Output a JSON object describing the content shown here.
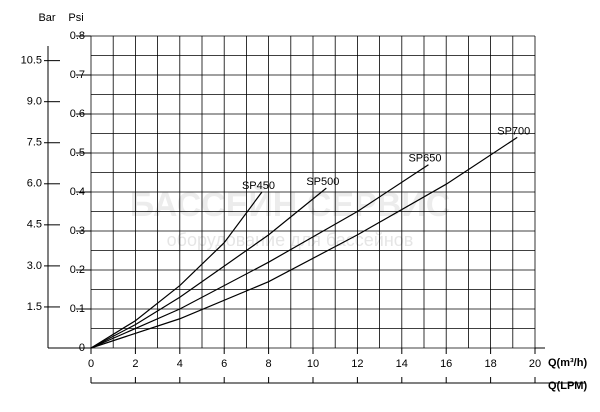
{
  "chart_data": {
    "type": "line",
    "y_header": "Psi",
    "y2_header": "Bar",
    "xlabel": "Q(m³/h)",
    "x2label": "Q(LPM)",
    "watermark": [
      "БАССЕЙН СЕРВИС",
      "оборудование для бассейнов"
    ],
    "xlim": [
      0,
      20
    ],
    "xticks": [
      0,
      2,
      4,
      6,
      8,
      10,
      12,
      14,
      16,
      18,
      20
    ],
    "ylim": [
      0,
      0.8
    ],
    "yticks": [
      0,
      0.1,
      0.2,
      0.3,
      0.4,
      0.5,
      0.6,
      0.7,
      0.8
    ],
    "y2lim": [
      0,
      11.4
    ],
    "y2ticks": [
      1.5,
      {
        "value": 3,
        "label": "3.0"
      },
      4.5,
      {
        "value": 6,
        "label": "6.0"
      },
      7.5,
      {
        "value": 9,
        "label": "9.0"
      },
      10.5
    ],
    "grid": true,
    "xgrid": [
      0,
      1,
      2,
      3,
      4,
      5,
      6,
      7,
      8,
      9,
      10,
      11,
      12,
      13,
      14,
      15,
      16,
      17,
      18,
      19,
      20
    ],
    "ygrid": [
      0,
      0.05,
      0.1,
      0.15,
      0.2,
      0.25,
      0.3,
      0.35,
      0.4,
      0.45,
      0.5,
      0.55,
      0.6,
      0.65,
      0.7,
      0.75,
      0.8
    ],
    "series": [
      {
        "name": "SP450",
        "color": "#000000",
        "x": [
          0,
          2,
          4,
          6,
          7.7
        ],
        "values": [
          0,
          0.07,
          0.16,
          0.27,
          0.4
        ]
      },
      {
        "name": "SP500",
        "color": "#000000",
        "x": [
          0,
          2,
          4,
          6,
          8,
          10.6
        ],
        "values": [
          0,
          0.06,
          0.13,
          0.21,
          0.29,
          0.41
        ]
      },
      {
        "name": "SP650",
        "color": "#000000",
        "x": [
          0,
          4,
          8,
          12,
          15.2
        ],
        "values": [
          0,
          0.1,
          0.22,
          0.35,
          0.47
        ]
      },
      {
        "name": "SP700",
        "color": "#000000",
        "x": [
          0,
          4,
          8,
          12,
          16,
          19.2
        ],
        "values": [
          0,
          0.075,
          0.17,
          0.29,
          0.42,
          0.54
        ]
      }
    ]
  }
}
